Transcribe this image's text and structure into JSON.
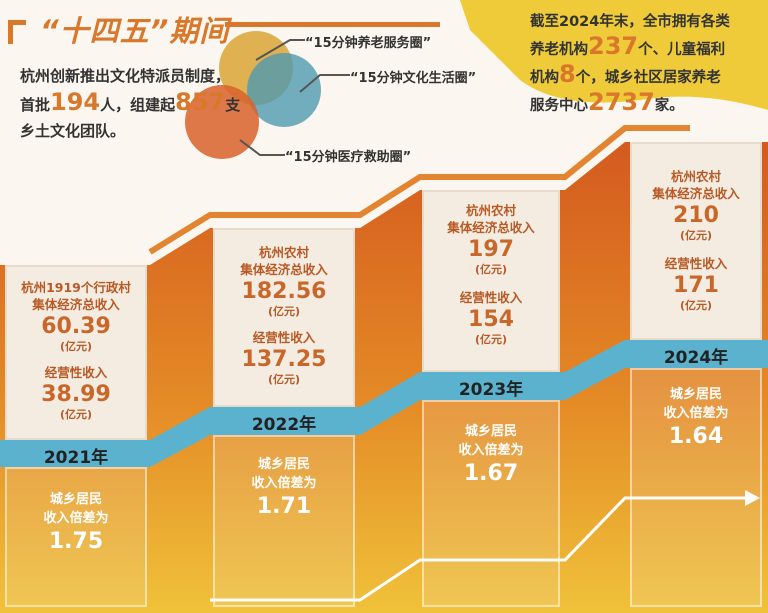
{
  "title": "“十四五”期间",
  "intro": {
    "line1": "杭州创新推出文化特派员制度，",
    "line2_pre": "首批",
    "count1": "194",
    "line2_mid": "人，组建起",
    "count2": "857",
    "line2_post": "支",
    "line3": "乡土文化团队。"
  },
  "circles": [
    {
      "label": "“15分钟养老服务圈”",
      "color": "#dba93e"
    },
    {
      "label": "“15分钟文化生活圈”",
      "color": "#4f9ab0"
    },
    {
      "label": "“15分钟医疗救助圈”",
      "color": "#d9622a"
    }
  ],
  "elder": {
    "line1": "截至2024年末，全市拥有各类",
    "l2pre": "养老机构",
    "n1": "237",
    "l2post": "个、儿童福利",
    "l3pre": "机构",
    "n2": "8",
    "l3post": "个，城乡社区居家养老",
    "l4pre": "服务中心",
    "n3": "2737",
    "l4post": "家。"
  },
  "colors": {
    "accent": "#d9772a",
    "band": "#5bb2cf",
    "yellow": "#efcb3a"
  },
  "years": [
    {
      "year": "2021年",
      "label1a": "杭州1919个行政村",
      "label1b": "集体经济总收入",
      "v1": "60.39",
      "u1": "(亿元)",
      "label2": "经营性收入",
      "v2": "38.99",
      "u2": "(亿元)",
      "gapa": "城乡居民",
      "gapb": "收入倍差为",
      "gap": "1.75"
    },
    {
      "year": "2022年",
      "label1a": "杭州农村",
      "label1b": "集体经济总收入",
      "v1": "182.56",
      "u1": "(亿元)",
      "label2": "经营性收入",
      "v2": "137.25",
      "u2": "(亿元)",
      "gapa": "城乡居民",
      "gapb": "收入倍差为",
      "gap": "1.71"
    },
    {
      "year": "2023年",
      "label1a": "杭州农村",
      "label1b": "集体经济总收入",
      "v1": "197",
      "u1": "(亿元)",
      "label2": "经营性收入",
      "v2": "154",
      "u2": "(亿元)",
      "gapa": "城乡居民",
      "gapb": "收入倍差为",
      "gap": "1.67"
    },
    {
      "year": "2024年",
      "label1a": "杭州农村",
      "label1b": "集体经济总收入",
      "v1": "210",
      "u1": "(亿元)",
      "label2": "经营性收入",
      "v2": "171",
      "u2": "(亿元)",
      "gapa": "城乡居民",
      "gapb": "收入倍差为",
      "gap": "1.64"
    }
  ]
}
